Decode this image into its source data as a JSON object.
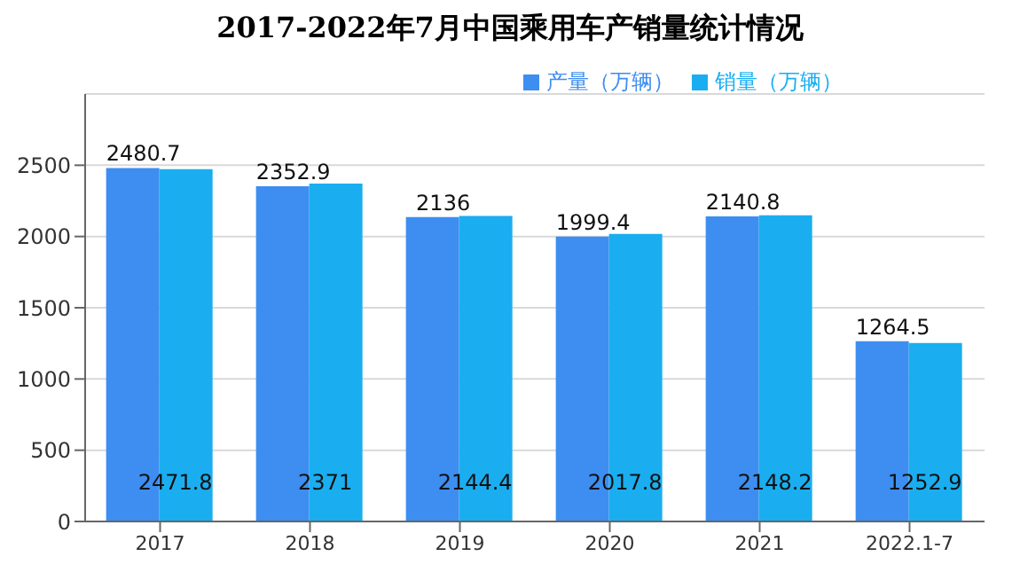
{
  "chart_data": {
    "type": "bar",
    "title": "2017-2022年7月中国乘用车产销量统计情况",
    "categories": [
      "2017",
      "2018",
      "2019",
      "2020",
      "2021",
      "2022.1-7"
    ],
    "series": [
      {
        "name": "产量（万辆）",
        "color": "#3d8ef0",
        "values": [
          2480.7,
          2352.9,
          2136,
          1999.4,
          2140.8,
          1264.5
        ]
      },
      {
        "name": "销量（万辆）",
        "color": "#1aaef0",
        "values": [
          2471.8,
          2371,
          2144.4,
          2017.8,
          2148.2,
          1252.9
        ]
      }
    ],
    "ylim": [
      0,
      3000
    ],
    "yticks": [
      0,
      500,
      1000,
      1500,
      2000,
      2500
    ],
    "grid": "y",
    "legend": "top right",
    "data_labels": true
  }
}
